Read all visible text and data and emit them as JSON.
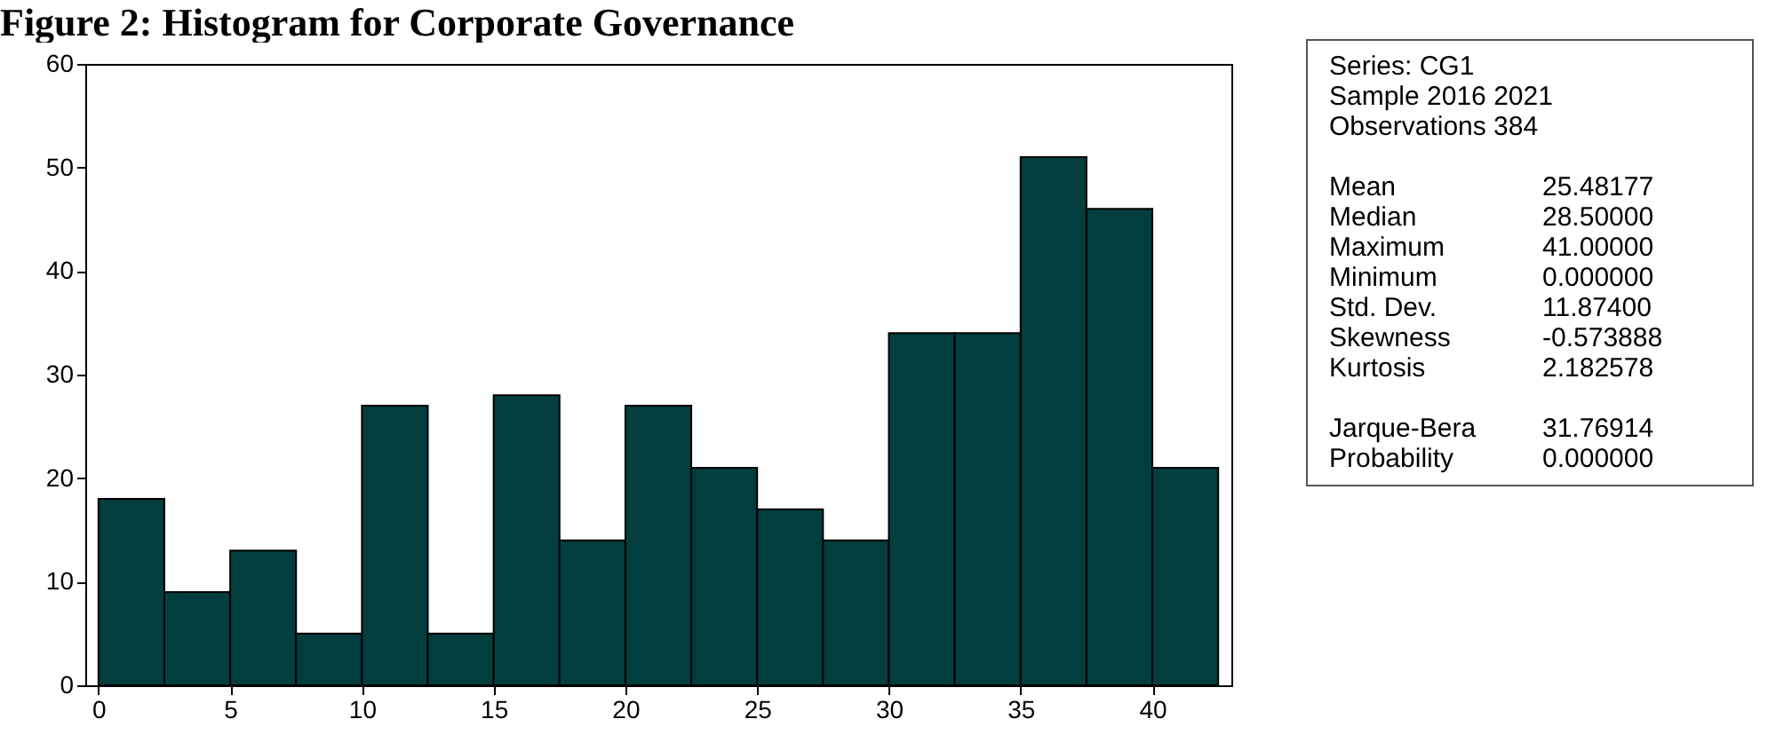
{
  "chart_data": {
    "type": "histogram",
    "title": "Figure 2: Histogram for Corporate Governance",
    "bins": [
      0,
      2.5,
      5,
      7.5,
      10,
      12.5,
      15,
      17.5,
      20,
      22.5,
      25,
      27.5,
      30,
      32.5,
      35,
      37.5,
      40,
      42.5
    ],
    "values": [
      18,
      9,
      13,
      5,
      27,
      5,
      28,
      14,
      27,
      21,
      17,
      14,
      34,
      34,
      51,
      46,
      21
    ],
    "color": "#033e3e",
    "xlim": [
      -0.5,
      43
    ],
    "xticks": [
      0,
      5,
      10,
      15,
      20,
      25,
      30,
      35,
      40
    ],
    "ylim": [
      0,
      60
    ],
    "yticks": [
      0,
      10,
      20,
      30,
      40,
      50,
      60
    ],
    "grid": false,
    "annotations": [
      "Series: CG1",
      "Sample 2016 2021",
      "Observations 384",
      "Mean\t25.48177",
      "Median\t28.50000",
      "Maximum\t41.00000",
      "Minimum\t0.000000",
      "Std. Dev.\t11.87400",
      "Skewness\t-0.573888",
      "Kurtosis\t2.182578",
      "Jarque-Bera\t31.76914",
      "Probability\t0.000000"
    ]
  }
}
